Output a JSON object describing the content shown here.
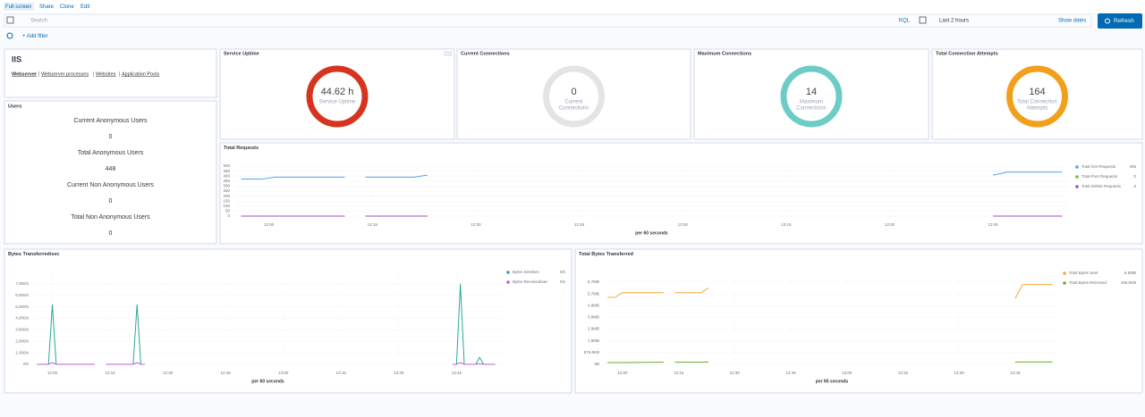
{
  "toolbar": {
    "links": [
      "Full screen",
      "Share",
      "Clone",
      "Edit"
    ],
    "search_placeholder": "Search",
    "query_language": "KQL",
    "time_range": "Last 2 hours",
    "show_dates": "Show dates",
    "refresh": "Refresh",
    "add_filter": "+ Add filter"
  },
  "iis_panel": {
    "title": "IIS",
    "links": [
      "Webserver",
      "Webserver processes",
      "Websites",
      "Application Pools"
    ]
  },
  "users_panel": {
    "title": "Users",
    "metrics": [
      {
        "label": "Current Anonymous Users",
        "value": 0
      },
      {
        "label": "Total Anonymous Users",
        "value": 448
      },
      {
        "label": "Current Non Anonymous Users",
        "value": 0
      },
      {
        "label": "Total Non Anonymous Users",
        "value": 0
      }
    ]
  },
  "gauges": [
    {
      "title": "Service Uptime",
      "value": "44.62 h",
      "label_lines": [
        "Service Uptime"
      ],
      "color": "#d6341f"
    },
    {
      "title": "Current Connections",
      "value": "0",
      "label_lines": [
        "Current",
        "Connections"
      ],
      "color": "#e4e4e4"
    },
    {
      "title": "Maximum Connections",
      "value": "14",
      "label_lines": [
        "Maximum",
        "Connections"
      ],
      "color": "#6dccc5"
    },
    {
      "title": "Total Connection Attempts",
      "value": "164",
      "label_lines": [
        "Total Connection",
        "Attempts"
      ],
      "color": "#f29f1c"
    }
  ],
  "chart_data": [
    {
      "type": "line",
      "title": "Total Requests",
      "x_label": "per 60 seconds",
      "grid": true,
      "x": [
        "11:56",
        "11:59",
        "12:01",
        "12:11",
        "12:12",
        "12:14",
        "12:21",
        "12:23",
        "12:30",
        "13:45",
        "13:47",
        "13:55"
      ],
      "xlim": [
        "11:55",
        "13:56"
      ],
      "xticks": [
        "12:00",
        "12:15",
        "12:30",
        "12:45",
        "13:00",
        "13:15",
        "13:30",
        "13:45"
      ],
      "ylim": [
        0,
        500
      ],
      "yticks": [
        0,
        50,
        100,
        150,
        200,
        250,
        300,
        350,
        400,
        450,
        500
      ],
      "series": [
        {
          "name": "Total Get Requests",
          "color": "#54a0ee",
          "legend_value": 455,
          "values": [
            370,
            370,
            390,
            390,
            null,
            390,
            390,
            410,
            null,
            410,
            440,
            440
          ]
        },
        {
          "name": "Total Post Requests",
          "color": "#7fb23b",
          "legend_value": 0,
          "values": [
            0,
            0,
            0,
            0,
            null,
            0,
            0,
            0,
            null,
            0,
            0,
            0
          ]
        },
        {
          "name": "Total Delete Requests",
          "color": "#a24ac4",
          "legend_value": 0,
          "values": [
            0,
            0,
            0,
            0,
            null,
            0,
            0,
            0,
            null,
            0,
            0,
            0
          ]
        }
      ]
    },
    {
      "type": "line",
      "title": "Bytes Transferred/sec",
      "x_label": "per 60 seconds",
      "grid": true,
      "x": [
        "11:56",
        "11:59",
        "12:00",
        "12:01",
        "12:05",
        "12:11",
        "12:12",
        "12:14",
        "12:21",
        "12:22",
        "12:23",
        "12:24",
        "12:30",
        "13:44",
        "13:45",
        "13:46",
        "13:47",
        "13:50",
        "13:51",
        "13:52",
        "13:55"
      ],
      "xlim": [
        "11:55",
        "13:57"
      ],
      "xticks": [
        "12:00",
        "12:15",
        "12:30",
        "12:45",
        "13:00",
        "13:15",
        "13:30",
        "13:45"
      ],
      "ylim": [
        0,
        8000
      ],
      "yticks": [
        {
          "value": 0,
          "label": "0/s"
        },
        {
          "value": 1000,
          "label": "1,000/s"
        },
        {
          "value": 2000,
          "label": "2,000/s"
        },
        {
          "value": 3000,
          "label": "3,000/s"
        },
        {
          "value": 4000,
          "label": "4,000/s"
        },
        {
          "value": 5000,
          "label": "5,000/s"
        },
        {
          "value": 6000,
          "label": "6,000/s"
        },
        {
          "value": 7000,
          "label": "7,000/s"
        }
      ],
      "series": [
        {
          "name": "Bytes Sent/sec",
          "color": "#2aa89b",
          "legend_value": "0/s",
          "values": [
            0,
            0,
            5200,
            0,
            0,
            0,
            null,
            0,
            0,
            5200,
            0,
            0,
            null,
            0,
            0,
            7000,
            0,
            0,
            600,
            0,
            0
          ]
        },
        {
          "name": "Bytes Received/sec",
          "color": "#c25dd6",
          "legend_value": "0/s",
          "values": [
            0,
            0,
            150,
            0,
            0,
            0,
            null,
            0,
            0,
            150,
            0,
            0,
            null,
            0,
            0,
            150,
            0,
            0,
            50,
            0,
            0
          ]
        }
      ]
    },
    {
      "type": "line",
      "title": "Total Bytes Transferred",
      "x_label": "per 60 seconds",
      "grid": true,
      "x": [
        "11:56",
        "11:58",
        "12:00",
        "12:11",
        "12:12",
        "12:14",
        "12:21",
        "12:23",
        "12:30",
        "13:45",
        "13:47",
        "13:55"
      ],
      "xlim": [
        "11:55",
        "13:57"
      ],
      "xticks": [
        "12:00",
        "12:15",
        "12:30",
        "12:45",
        "13:00",
        "13:15",
        "13:30",
        "13:45"
      ],
      "ylim": [
        0,
        7500000
      ],
      "yticks": [
        {
          "value": 0,
          "label": "0B"
        },
        {
          "value": 1000000,
          "label": "976.6KB"
        },
        {
          "value": 2000000,
          "label": "1.9MB"
        },
        {
          "value": 3000000,
          "label": "2.9MB"
        },
        {
          "value": 4000000,
          "label": "3.8MB"
        },
        {
          "value": 5000000,
          "label": "4.8MB"
        },
        {
          "value": 6000000,
          "label": "5.7MB"
        },
        {
          "value": 7000000,
          "label": "6.7MB"
        }
      ],
      "series": [
        {
          "name": "Total Bytes Sent",
          "color": "#f5a742",
          "legend_value": "6.5MB",
          "values": [
            5700000,
            5700000,
            6100000,
            6100000,
            null,
            6100000,
            6100000,
            6500000,
            null,
            5600000,
            6800000,
            6800000
          ]
        },
        {
          "name": "Total Bytes Received",
          "color": "#6aa82f",
          "legend_value": "190.5KB",
          "values": [
            150000,
            150000,
            150000,
            180000,
            null,
            180000,
            180000,
            190000,
            null,
            190000,
            200000,
            200000
          ]
        }
      ]
    }
  ]
}
